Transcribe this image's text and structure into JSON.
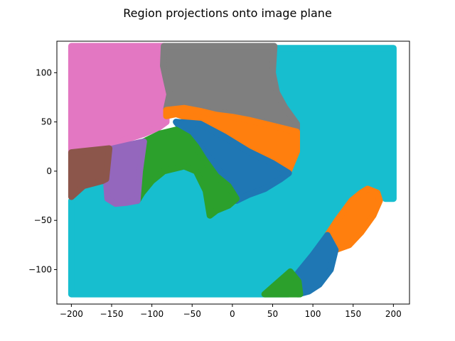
{
  "chart_data": {
    "type": "scatter",
    "title": "Region projections onto image plane",
    "xlabel": "",
    "ylabel": "",
    "xlim": [
      -218,
      220
    ],
    "ylim": [
      -135,
      132
    ],
    "xticks": [
      -200,
      -150,
      -100,
      -50,
      0,
      50,
      100,
      150,
      200
    ],
    "yticks": [
      -100,
      -50,
      0,
      50,
      100
    ],
    "grid": false,
    "legend": "none",
    "regions": [
      {
        "color": "#17becf",
        "points": [
          [
            -200,
            -125
          ],
          [
            -200,
            -30
          ],
          [
            -185,
            -15
          ],
          [
            -160,
            -8
          ],
          [
            -155,
            -28
          ],
          [
            -145,
            -33
          ],
          [
            -132,
            -30
          ],
          [
            -115,
            -22
          ],
          [
            -100,
            -10
          ],
          [
            -85,
            0
          ],
          [
            -60,
            5
          ],
          [
            -45,
            0
          ],
          [
            -33,
            -20
          ],
          [
            -28,
            -45
          ],
          [
            -20,
            -38
          ],
          [
            -10,
            -32
          ],
          [
            5,
            -28
          ],
          [
            20,
            -24
          ],
          [
            40,
            -18
          ],
          [
            60,
            -8
          ],
          [
            72,
            2
          ],
          [
            80,
            20
          ],
          [
            80,
            48
          ],
          [
            65,
            65
          ],
          [
            55,
            80
          ],
          [
            50,
            100
          ],
          [
            50,
            105
          ],
          [
            55,
            117
          ],
          [
            55,
            125
          ],
          [
            200,
            125
          ],
          [
            200,
            -28
          ],
          [
            190,
            -28
          ],
          [
            180,
            -18
          ],
          [
            168,
            -18
          ],
          [
            152,
            -26
          ],
          [
            135,
            -48
          ],
          [
            120,
            -70
          ],
          [
            112,
            -85
          ],
          [
            82,
            -118
          ],
          [
            70,
            -125
          ]
        ]
      },
      {
        "color": "#e377c2",
        "points": [
          [
            -200,
            127
          ],
          [
            -85,
            127
          ],
          [
            -88,
            110
          ],
          [
            -85,
            95
          ],
          [
            -80,
            78
          ],
          [
            -82,
            62
          ],
          [
            -82,
            50
          ],
          [
            -92,
            44
          ],
          [
            -110,
            38
          ],
          [
            -140,
            30
          ],
          [
            -170,
            24
          ],
          [
            -200,
            19
          ]
        ]
      },
      {
        "color": "#7f7f7f",
        "points": [
          [
            -85,
            127
          ],
          [
            52,
            127
          ],
          [
            50,
            100
          ],
          [
            55,
            80
          ],
          [
            65,
            65
          ],
          [
            80,
            48
          ],
          [
            80,
            40
          ],
          [
            60,
            45
          ],
          [
            40,
            50
          ],
          [
            20,
            55
          ],
          [
            0,
            58
          ],
          [
            -20,
            60
          ],
          [
            -40,
            62
          ],
          [
            -62,
            64
          ],
          [
            -82,
            63
          ],
          [
            -78,
            78
          ],
          [
            -82,
            92
          ],
          [
            -86,
            107
          ]
        ]
      },
      {
        "color": "#ff7f0e",
        "points": [
          [
            -82,
            62
          ],
          [
            -60,
            64
          ],
          [
            -40,
            61
          ],
          [
            -20,
            57
          ],
          [
            0,
            55
          ],
          [
            20,
            52
          ],
          [
            40,
            48
          ],
          [
            60,
            44
          ],
          [
            80,
            40
          ],
          [
            80,
            20
          ],
          [
            70,
            0
          ],
          [
            50,
            8
          ],
          [
            20,
            20
          ],
          [
            -10,
            35
          ],
          [
            -40,
            50
          ],
          [
            -70,
            58
          ],
          [
            -82,
            56
          ]
        ]
      },
      {
        "color": "#1f77b4",
        "points": [
          [
            -70,
            50
          ],
          [
            -40,
            48
          ],
          [
            -10,
            35
          ],
          [
            20,
            20
          ],
          [
            50,
            8
          ],
          [
            70,
            -2
          ],
          [
            60,
            -8
          ],
          [
            40,
            -18
          ],
          [
            20,
            -24
          ],
          [
            10,
            -28
          ],
          [
            5,
            -30
          ],
          [
            -5,
            -15
          ],
          [
            -20,
            5
          ],
          [
            -45,
            30
          ],
          [
            -60,
            40
          ]
        ]
      },
      {
        "color": "#2ca02c",
        "points": [
          [
            -110,
            30
          ],
          [
            -90,
            38
          ],
          [
            -70,
            42
          ],
          [
            -55,
            35
          ],
          [
            -45,
            25
          ],
          [
            -35,
            12
          ],
          [
            -20,
            -5
          ],
          [
            -5,
            -15
          ],
          [
            5,
            -28
          ],
          [
            -5,
            -35
          ],
          [
            -20,
            -40
          ],
          [
            -28,
            -45
          ],
          [
            -33,
            -20
          ],
          [
            -45,
            0
          ],
          [
            -60,
            5
          ],
          [
            -85,
            0
          ],
          [
            -100,
            -10
          ],
          [
            -112,
            -22
          ],
          [
            -118,
            -30
          ],
          [
            -115,
            -5
          ]
        ]
      },
      {
        "color": "#9467bd",
        "points": [
          [
            -153,
            22
          ],
          [
            -110,
            30
          ],
          [
            -115,
            0
          ],
          [
            -118,
            -30
          ],
          [
            -132,
            -32
          ],
          [
            -145,
            -33
          ],
          [
            -155,
            -28
          ],
          [
            -157,
            -8
          ]
        ]
      },
      {
        "color": "#8c564b",
        "points": [
          [
            -200,
            19
          ],
          [
            -153,
            23
          ],
          [
            -157,
            -8
          ],
          [
            -162,
            -10
          ],
          [
            -185,
            -15
          ],
          [
            -200,
            -26
          ]
        ]
      },
      {
        "color": "#ff7f0e",
        "points": [
          [
            168,
            -18
          ],
          [
            180,
            -22
          ],
          [
            183,
            -30
          ],
          [
            175,
            -45
          ],
          [
            160,
            -62
          ],
          [
            145,
            -75
          ],
          [
            128,
            -80
          ],
          [
            118,
            -65
          ],
          [
            130,
            -50
          ],
          [
            148,
            -30
          ],
          [
            160,
            -22
          ]
        ]
      },
      {
        "color": "#1f77b4",
        "points": [
          [
            118,
            -65
          ],
          [
            128,
            -80
          ],
          [
            122,
            -100
          ],
          [
            108,
            -115
          ],
          [
            95,
            -122
          ],
          [
            82,
            -125
          ],
          [
            72,
            -115
          ],
          [
            82,
            -103
          ],
          [
            100,
            -85
          ]
        ]
      },
      {
        "color": "#2ca02c",
        "points": [
          [
            72,
            -102
          ],
          [
            82,
            -112
          ],
          [
            84,
            -125
          ],
          [
            40,
            -125
          ]
        ]
      }
    ]
  }
}
